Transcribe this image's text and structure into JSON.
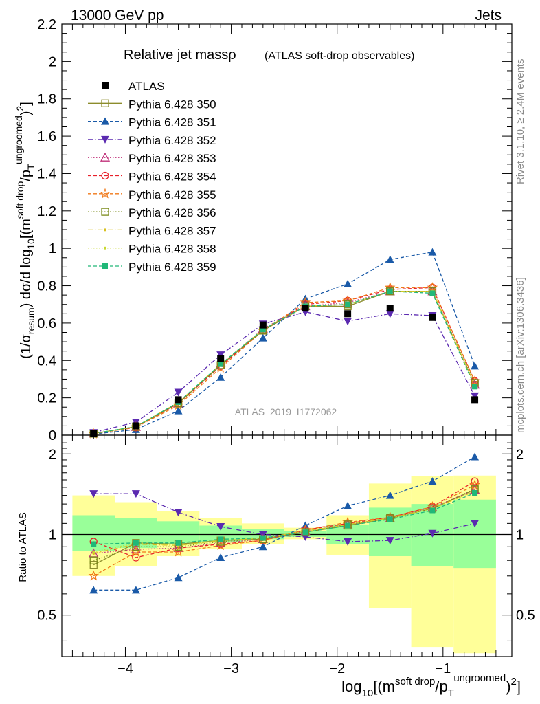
{
  "header": {
    "left": "13000 GeV pp",
    "right": "Jets"
  },
  "side_labels": {
    "rivet": "Rivet 3.1.10, ≥ 2.4M events",
    "source": "mcplots.cern.ch [arXiv:1306.3436]"
  },
  "chart_data": [
    {
      "type": "line",
      "panel": "main",
      "title": "Relative jet massρ",
      "subtitle": "(ATLAS soft-drop observables)",
      "watermark": "ATLAS_2019_I1772062",
      "ylabel": "(1/σ_resum) dσ/d log10[(m^soft drop/p_T^ungroomed)^2]",
      "xlim": [
        -4.6,
        -0.35
      ],
      "ylim": [
        0,
        2.2
      ],
      "xticks": [
        -4,
        -3,
        -2,
        -1
      ],
      "yticks": [
        0,
        0.2,
        0.4,
        0.6,
        0.8,
        1,
        1.2,
        1.4,
        1.6,
        1.8,
        2,
        2.2
      ],
      "ytick_labels": [
        "0",
        "0.2",
        "0.4",
        "0.6",
        "0.8",
        "1",
        "1.2",
        "1.4",
        "1.6",
        "1.8",
        "2",
        "2.2"
      ],
      "x": [
        -4.3,
        -3.9,
        -3.5,
        -3.1,
        -2.7,
        -2.3,
        -1.9,
        -1.5,
        -1.1,
        -0.7
      ],
      "data": {
        "name": "ATLAS",
        "values": [
          0.01,
          0.05,
          0.19,
          0.41,
          0.59,
          0.68,
          0.65,
          0.68,
          0.63,
          0.19
        ]
      },
      "series": [
        {
          "name": "Pythia 6.428 350",
          "color": "#8c8c2c",
          "dash": "solid",
          "marker": "open-square",
          "values": [
            0.009,
            0.046,
            0.17,
            0.375,
            0.56,
            0.69,
            0.69,
            0.77,
            0.77,
            0.27
          ]
        },
        {
          "name": "Pythia 6.428 351",
          "color": "#1a5aa8",
          "dash": "dashed",
          "marker": "filled-triangle-up",
          "values": [
            0.006,
            0.03,
            0.13,
            0.31,
            0.52,
            0.73,
            0.81,
            0.94,
            0.98,
            0.37
          ]
        },
        {
          "name": "Pythia 6.428 352",
          "color": "#5b2ab0",
          "dash": "dashdot",
          "marker": "filled-triangle-down",
          "values": [
            0.014,
            0.07,
            0.23,
            0.43,
            0.595,
            0.66,
            0.61,
            0.65,
            0.64,
            0.21
          ]
        },
        {
          "name": "Pythia 6.428 353",
          "color": "#c0307a",
          "dash": "dotted",
          "marker": "open-triangle-up",
          "values": [
            0.0085,
            0.044,
            0.17,
            0.375,
            0.57,
            0.69,
            0.71,
            0.77,
            0.77,
            0.27
          ]
        },
        {
          "name": "Pythia 6.428 354",
          "color": "#e8202a",
          "dash": "dashed",
          "marker": "open-circle",
          "values": [
            0.0095,
            0.041,
            0.17,
            0.37,
            0.56,
            0.7,
            0.72,
            0.78,
            0.79,
            0.29
          ]
        },
        {
          "name": "Pythia 6.428 355",
          "color": "#f07818",
          "dash": "dashed",
          "marker": "open-star",
          "values": [
            0.007,
            0.043,
            0.16,
            0.36,
            0.56,
            0.71,
            0.72,
            0.79,
            0.79,
            0.29
          ]
        },
        {
          "name": "Pythia 6.428 356",
          "color": "#7a8a1a",
          "dash": "dotted",
          "marker": "open-square",
          "values": [
            0.008,
            0.045,
            0.17,
            0.375,
            0.56,
            0.69,
            0.7,
            0.77,
            0.77,
            0.28
          ]
        },
        {
          "name": "Pythia 6.428 357",
          "color": "#d8c020",
          "dash": "dashdot",
          "marker": "small-dot",
          "values": [
            0.0085,
            0.046,
            0.175,
            0.38,
            0.565,
            0.69,
            0.7,
            0.77,
            0.77,
            0.27
          ]
        },
        {
          "name": "Pythia 6.428 358",
          "color": "#c8d830",
          "dash": "dotted",
          "marker": "small-dot",
          "values": [
            0.0085,
            0.046,
            0.175,
            0.38,
            0.565,
            0.69,
            0.7,
            0.77,
            0.77,
            0.27
          ]
        },
        {
          "name": "Pythia 6.428 359",
          "color": "#20b878",
          "dash": "dashed",
          "marker": "filled-square",
          "values": [
            0.009,
            0.046,
            0.176,
            0.38,
            0.565,
            0.69,
            0.7,
            0.77,
            0.76,
            0.26
          ]
        }
      ],
      "legend_position": "top-left"
    },
    {
      "type": "line",
      "panel": "ratio",
      "ylabel": "Ratio to ATLAS",
      "xlabel": "log10[(m^soft drop/p_T^ungroomed)^2]",
      "xlim": [
        -4.6,
        -0.35
      ],
      "ylim": [
        0.35,
        2.35
      ],
      "log_y": true,
      "grid": false,
      "xticks": [
        -4,
        -3,
        -2,
        -1
      ],
      "xtick_labels": [
        "−4",
        "−3",
        "−2",
        "−1"
      ],
      "yticks": [
        0.5,
        1,
        2
      ],
      "ytick_labels": [
        "0.5",
        "1",
        "2"
      ],
      "bins": [
        [
          -4.5,
          -4.1
        ],
        [
          -4.1,
          -3.7
        ],
        [
          -3.7,
          -3.3
        ],
        [
          -3.3,
          -2.9
        ],
        [
          -2.9,
          -2.5
        ],
        [
          -2.5,
          -2.1
        ],
        [
          -2.1,
          -1.7
        ],
        [
          -1.7,
          -1.3
        ],
        [
          -1.3,
          -0.9
        ],
        [
          -0.9,
          -0.5
        ]
      ],
      "band_green": [
        [
          0.87,
          1.18
        ],
        [
          0.89,
          1.15
        ],
        [
          0.92,
          1.12
        ],
        [
          0.94,
          1.08
        ],
        [
          0.96,
          1.05
        ],
        [
          0.98,
          1.03
        ],
        [
          0.92,
          1.09
        ],
        [
          0.83,
          1.26
        ],
        [
          0.76,
          1.3
        ],
        [
          0.75,
          1.35
        ]
      ],
      "band_yellow": [
        [
          0.7,
          1.4
        ],
        [
          0.76,
          1.32
        ],
        [
          0.83,
          1.22
        ],
        [
          0.88,
          1.15
        ],
        [
          0.92,
          1.1
        ],
        [
          0.96,
          1.06
        ],
        [
          0.84,
          1.18
        ],
        [
          0.53,
          1.55
        ],
        [
          0.38,
          1.65
        ],
        [
          0.36,
          1.66
        ]
      ],
      "series": [
        {
          "name": "Pythia 6.428 350",
          "values": [
            0.77,
            0.93,
            0.92,
            0.95,
            0.96,
            1.02,
            1.08,
            1.15,
            1.25,
            1.47
          ]
        },
        {
          "name": "Pythia 6.428 351",
          "values": [
            0.62,
            0.62,
            0.69,
            0.82,
            0.9,
            1.08,
            1.28,
            1.4,
            1.58,
            1.95
          ]
        },
        {
          "name": "Pythia 6.428 352",
          "values": [
            1.42,
            1.42,
            1.21,
            1.07,
            1.0,
            0.98,
            0.94,
            0.95,
            1.01,
            1.1
          ]
        },
        {
          "name": "Pythia 6.428 353",
          "values": [
            0.85,
            0.88,
            0.89,
            0.93,
            0.96,
            1.03,
            1.09,
            1.15,
            1.26,
            1.47
          ]
        },
        {
          "name": "Pythia 6.428 354",
          "values": [
            0.94,
            0.82,
            0.89,
            0.92,
            0.95,
            1.04,
            1.1,
            1.16,
            1.27,
            1.58
          ]
        },
        {
          "name": "Pythia 6.428 355",
          "values": [
            0.7,
            0.86,
            0.86,
            0.91,
            0.95,
            1.04,
            1.11,
            1.16,
            1.27,
            1.53
          ]
        },
        {
          "name": "Pythia 6.428 356",
          "values": [
            0.8,
            0.9,
            0.9,
            0.94,
            0.96,
            1.02,
            1.09,
            1.15,
            1.25,
            1.48
          ]
        },
        {
          "name": "Pythia 6.428 357",
          "values": [
            0.85,
            0.92,
            0.91,
            0.95,
            0.97,
            1.03,
            1.09,
            1.15,
            1.25,
            1.45
          ]
        },
        {
          "name": "Pythia 6.428 358",
          "values": [
            0.86,
            0.93,
            0.91,
            0.95,
            0.97,
            1.03,
            1.09,
            1.15,
            1.25,
            1.45
          ]
        },
        {
          "name": "Pythia 6.428 359",
          "values": [
            0.92,
            0.93,
            0.93,
            0.96,
            0.97,
            1.02,
            1.08,
            1.14,
            1.23,
            1.43
          ]
        }
      ]
    }
  ]
}
